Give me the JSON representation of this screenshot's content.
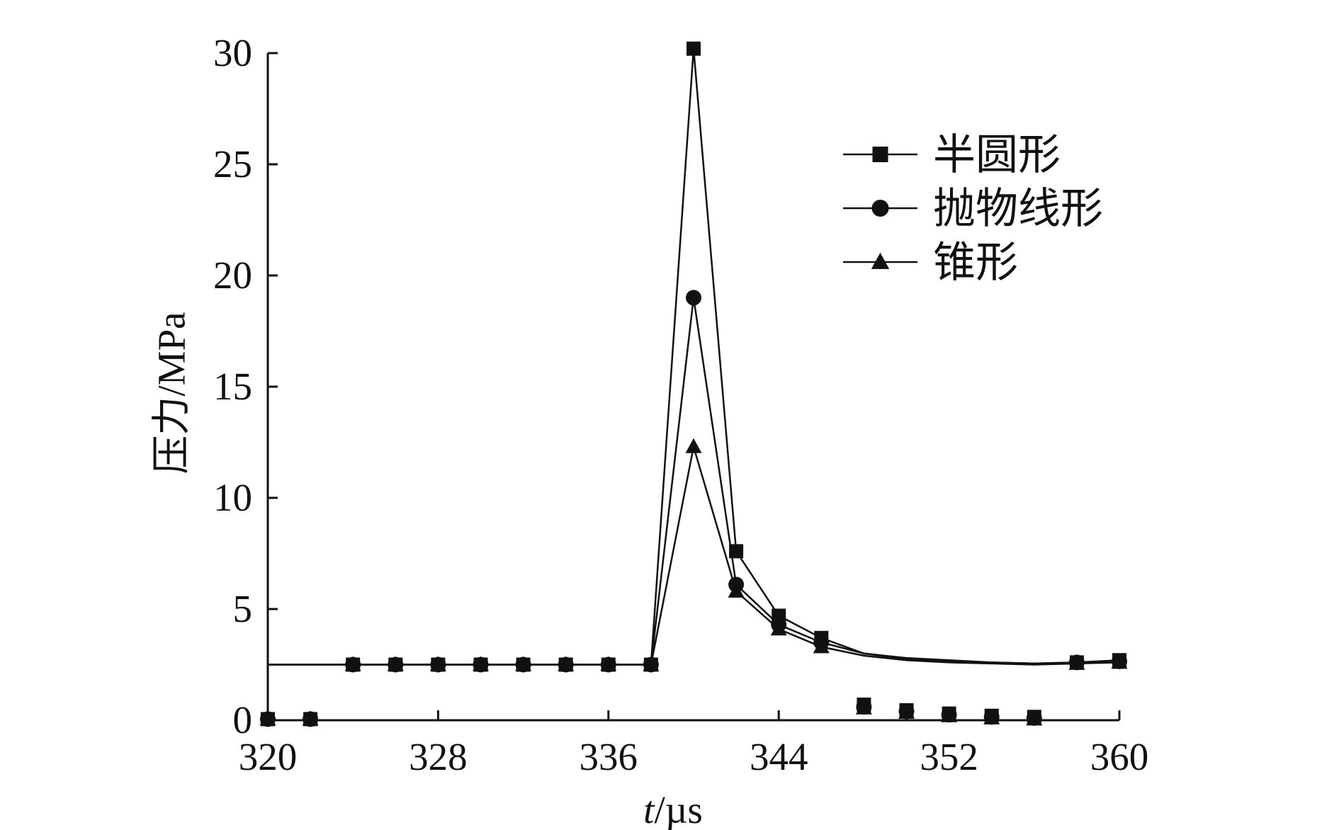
{
  "chart_data": {
    "type": "line",
    "title": "",
    "xlabel_italic": "t",
    "xlabel_unit": "/µs",
    "ylabel": "压力/MPa",
    "xlim": [
      320,
      360
    ],
    "ylim": [
      0,
      30
    ],
    "xticks": [
      320,
      328,
      336,
      344,
      352,
      360
    ],
    "xtick_labels": [
      "320",
      "328",
      "336",
      "344",
      "352",
      "360"
    ],
    "yticks": [
      0,
      5,
      10,
      15,
      20,
      25,
      30
    ],
    "ytick_labels": [
      "0",
      "5",
      "10",
      "15",
      "20",
      "25",
      "30"
    ],
    "grid": false,
    "legend_position": "top-right",
    "series": [
      {
        "name": "半圆形",
        "marker": "square",
        "line": [
          [
            320,
            2.5
          ],
          [
            338,
            2.5
          ],
          [
            340,
            30.2
          ],
          [
            342,
            7.6
          ],
          [
            344,
            4.7
          ],
          [
            346,
            3.7
          ],
          [
            348,
            3.0
          ],
          [
            350,
            2.8
          ],
          [
            352,
            2.7
          ],
          [
            354,
            2.6
          ],
          [
            356,
            2.55
          ],
          [
            358,
            2.6
          ],
          [
            360,
            2.7
          ]
        ],
        "points": [
          [
            320,
            0.05
          ],
          [
            322,
            0.05
          ],
          [
            324,
            2.5
          ],
          [
            326,
            2.5
          ],
          [
            328,
            2.5
          ],
          [
            330,
            2.5
          ],
          [
            332,
            2.5
          ],
          [
            334,
            2.5
          ],
          [
            336,
            2.5
          ],
          [
            338,
            2.5
          ],
          [
            340,
            30.2
          ],
          [
            342,
            7.6
          ],
          [
            344,
            4.7
          ],
          [
            346,
            3.7
          ],
          [
            348,
            0.7
          ],
          [
            350,
            0.45
          ],
          [
            352,
            0.3
          ],
          [
            354,
            0.2
          ],
          [
            356,
            0.15
          ],
          [
            358,
            2.6
          ],
          [
            360,
            2.7
          ]
        ]
      },
      {
        "name": "抛物线形",
        "marker": "circle",
        "line": [
          [
            320,
            2.5
          ],
          [
            338,
            2.5
          ],
          [
            340,
            19.0
          ],
          [
            342,
            6.1
          ],
          [
            344,
            4.3
          ],
          [
            346,
            3.5
          ],
          [
            348,
            3.0
          ],
          [
            350,
            2.75
          ],
          [
            352,
            2.65
          ],
          [
            354,
            2.6
          ],
          [
            356,
            2.55
          ],
          [
            358,
            2.6
          ],
          [
            360,
            2.65
          ]
        ],
        "points": [
          [
            320,
            0.05
          ],
          [
            322,
            0.05
          ],
          [
            324,
            2.5
          ],
          [
            326,
            2.5
          ],
          [
            328,
            2.5
          ],
          [
            330,
            2.5
          ],
          [
            332,
            2.5
          ],
          [
            334,
            2.5
          ],
          [
            336,
            2.5
          ],
          [
            338,
            2.5
          ],
          [
            340,
            19.0
          ],
          [
            342,
            6.1
          ],
          [
            344,
            4.3
          ],
          [
            346,
            3.5
          ],
          [
            348,
            0.6
          ],
          [
            350,
            0.4
          ],
          [
            352,
            0.25
          ],
          [
            354,
            0.15
          ],
          [
            356,
            0.1
          ],
          [
            358,
            2.6
          ],
          [
            360,
            2.65
          ]
        ]
      },
      {
        "name": "锥形",
        "marker": "triangle",
        "line": [
          [
            320,
            2.5
          ],
          [
            338,
            2.5
          ],
          [
            340,
            12.3
          ],
          [
            342,
            5.8
          ],
          [
            344,
            4.1
          ],
          [
            346,
            3.3
          ],
          [
            348,
            2.9
          ],
          [
            350,
            2.7
          ],
          [
            352,
            2.6
          ],
          [
            354,
            2.55
          ],
          [
            356,
            2.5
          ],
          [
            358,
            2.55
          ],
          [
            360,
            2.6
          ]
        ],
        "points": [
          [
            320,
            0.05
          ],
          [
            322,
            0.05
          ],
          [
            324,
            2.5
          ],
          [
            326,
            2.5
          ],
          [
            328,
            2.5
          ],
          [
            330,
            2.5
          ],
          [
            332,
            2.5
          ],
          [
            334,
            2.5
          ],
          [
            336,
            2.5
          ],
          [
            338,
            2.5
          ],
          [
            340,
            12.3
          ],
          [
            342,
            5.8
          ],
          [
            344,
            4.1
          ],
          [
            346,
            3.3
          ],
          [
            348,
            0.55
          ],
          [
            350,
            0.35
          ],
          [
            352,
            0.2
          ],
          [
            354,
            0.1
          ],
          [
            356,
            0.05
          ],
          [
            358,
            2.55
          ],
          [
            360,
            2.6
          ]
        ]
      }
    ]
  }
}
